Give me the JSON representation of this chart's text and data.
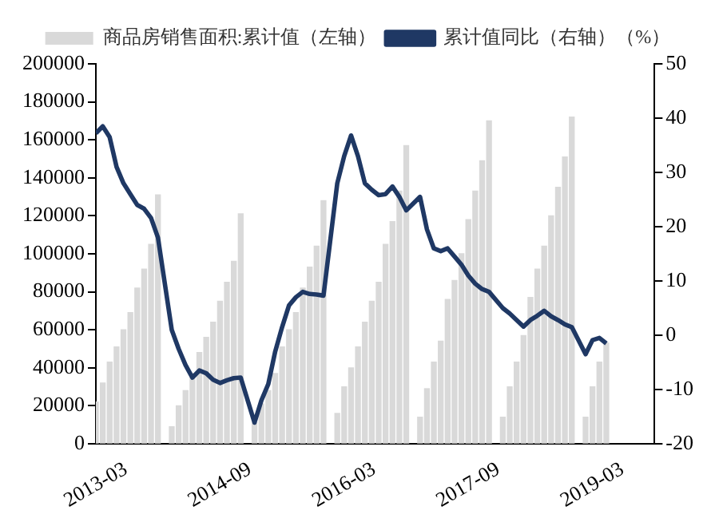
{
  "chart_data": {
    "type": "bar",
    "x": [
      "2013-03",
      "2013-04",
      "2013-05",
      "2013-06",
      "2013-07",
      "2013-08",
      "2013-09",
      "2013-10",
      "2013-11",
      "2013-12",
      "2014-02",
      "2014-03",
      "2014-04",
      "2014-05",
      "2014-06",
      "2014-07",
      "2014-08",
      "2014-09",
      "2014-10",
      "2014-11",
      "2014-12",
      "2015-02",
      "2015-03",
      "2015-04",
      "2015-05",
      "2015-06",
      "2015-07",
      "2015-08",
      "2015-09",
      "2015-10",
      "2015-11",
      "2015-12",
      "2016-02",
      "2016-03",
      "2016-04",
      "2016-05",
      "2016-06",
      "2016-07",
      "2016-08",
      "2016-09",
      "2016-10",
      "2016-11",
      "2016-12",
      "2017-02",
      "2017-03",
      "2017-04",
      "2017-05",
      "2017-06",
      "2017-07",
      "2017-08",
      "2017-09",
      "2017-10",
      "2017-11",
      "2017-12",
      "2018-02",
      "2018-03",
      "2018-04",
      "2018-05",
      "2018-06",
      "2018-07",
      "2018-08",
      "2018-09",
      "2018-10",
      "2018-11",
      "2018-12",
      "2019-02",
      "2019-03",
      "2019-04",
      "2019-05"
    ],
    "series": [
      {
        "name": "商品房销售面积:累计值（左轴）",
        "color": "#d9d9d9",
        "values": [
          22000,
          32000,
          43000,
          51000,
          60000,
          69000,
          82000,
          92000,
          105000,
          131000,
          9000,
          20000,
          28000,
          37000,
          48000,
          56000,
          64000,
          75000,
          85000,
          96000,
          121000,
          11000,
          21000,
          28000,
          37000,
          51000,
          60000,
          69000,
          82000,
          93000,
          104000,
          128000,
          16000,
          30000,
          40000,
          51000,
          64000,
          75000,
          85000,
          105000,
          117000,
          133000,
          157000,
          14000,
          29000,
          43000,
          54000,
          76000,
          86000,
          100000,
          118000,
          133000,
          149000,
          170000,
          14000,
          30000,
          43000,
          57000,
          77000,
          92000,
          104000,
          120000,
          135000,
          151000,
          172000,
          14000,
          30000,
          43000,
          53000
        ]
      },
      {
        "name": "累计值同比（右轴）（%）",
        "type": "line",
        "axis": "y2",
        "color": "#1f3864",
        "values": [
          37.2,
          38.5,
          36.5,
          31,
          28,
          26,
          24,
          23.3,
          21.6,
          18,
          1,
          -2.5,
          -5.5,
          -7.8,
          -6.5,
          -7,
          -8.2,
          -8.8,
          -8.3,
          -7.9,
          -7.8,
          -16.1,
          -12,
          -9,
          -3,
          1.5,
          5.5,
          7,
          8,
          7.6,
          7.5,
          7.3,
          28,
          33,
          36.8,
          33,
          28,
          26.8,
          25.8,
          26,
          27.4,
          25.5,
          23,
          25.5,
          19.5,
          16,
          15.5,
          16,
          14.5,
          13,
          11,
          9.5,
          8.5,
          8,
          5,
          4,
          2.8,
          1.6,
          2.8,
          3.6,
          4.5,
          3.5,
          2.8,
          2,
          1.5,
          -3.5,
          -0.9,
          -0.5,
          -1.5
        ]
      }
    ],
    "xlim": [
      "2013-03",
      "2019-12"
    ],
    "xticks": [
      "2013-03",
      "2014-09",
      "2016-03",
      "2017-09",
      "2019-03"
    ],
    "ylim": [
      0,
      200000
    ],
    "yticks": [
      0,
      20000,
      40000,
      60000,
      80000,
      100000,
      120000,
      140000,
      160000,
      180000,
      200000
    ],
    "y2lim": [
      -20,
      50
    ],
    "y2ticks": [
      -20,
      -10,
      0,
      10,
      20,
      30,
      40,
      50
    ],
    "legend": "top",
    "grid": false,
    "marker": "none",
    "line_style": "solid"
  }
}
